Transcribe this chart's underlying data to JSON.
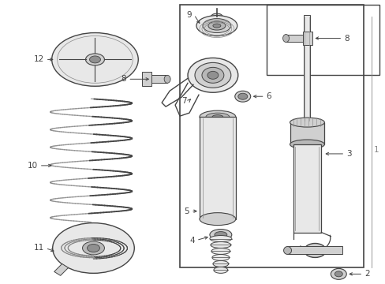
{
  "bg_color": "#ffffff",
  "lc": "#444444",
  "gray1": "#e8e8e8",
  "gray2": "#d0d0d0",
  "gray3": "#b8b8b8",
  "gray4": "#909090",
  "gray5": "#c0c0c0",
  "mid_gray": "#888888",
  "figsize": [
    4.89,
    3.6
  ],
  "dpi": 100
}
